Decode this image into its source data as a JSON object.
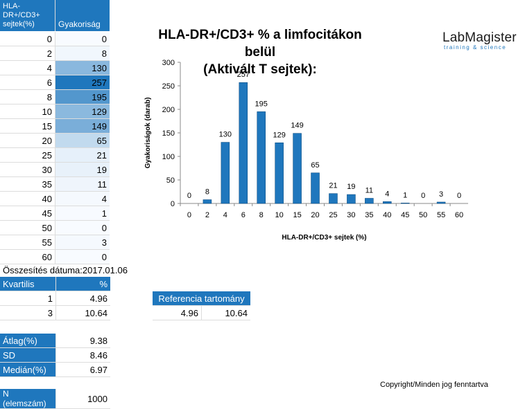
{
  "table": {
    "header_col1": "HLA-DR+/CD3+ sejtek(%)",
    "header_col2": "Gyakoriság",
    "rows": [
      {
        "x": "0",
        "f": "0"
      },
      {
        "x": "2",
        "f": "8"
      },
      {
        "x": "4",
        "f": "130"
      },
      {
        "x": "6",
        "f": "257"
      },
      {
        "x": "8",
        "f": "195"
      },
      {
        "x": "10",
        "f": "129"
      },
      {
        "x": "15",
        "f": "149"
      },
      {
        "x": "20",
        "f": "65"
      },
      {
        "x": "25",
        "f": "21"
      },
      {
        "x": "30",
        "f": "19"
      },
      {
        "x": "35",
        "f": "11"
      },
      {
        "x": "40",
        "f": "4"
      },
      {
        "x": "45",
        "f": "1"
      },
      {
        "x": "50",
        "f": "0"
      },
      {
        "x": "55",
        "f": "3"
      },
      {
        "x": "60",
        "f": "0"
      }
    ]
  },
  "title_line1": "HLA-DR+/CD3+ % a limfocitákon  belül",
  "title_line2": "(Aktivált T sejtek):",
  "logo": {
    "main": "LabMagister",
    "sub": "training & science"
  },
  "colors": {
    "accent": "#1f77bd",
    "bar": "#1f77bd",
    "bar_stroke": "#0d4f85"
  },
  "chart_data": {
    "type": "bar",
    "categories": [
      "0",
      "2",
      "4",
      "6",
      "8",
      "10",
      "15",
      "20",
      "25",
      "30",
      "35",
      "40",
      "45",
      "50",
      "55",
      "60"
    ],
    "values": [
      0,
      8,
      130,
      257,
      195,
      129,
      149,
      65,
      21,
      19,
      11,
      4,
      1,
      0,
      3,
      0
    ],
    "xlabel": "HLA-DR+/CD3+ sejtek (%)",
    "ylabel": "Gyakoriságok (darab)",
    "ylim": [
      0,
      300
    ],
    "yticks": [
      0,
      50,
      100,
      150,
      200,
      250,
      300
    ],
    "data_labels": true
  },
  "summary": {
    "date_label": "Összesítés dátuma:",
    "date_value": "2017.01.06",
    "quartile_header": "Kvartilis",
    "percent_header": "%",
    "quartiles": [
      {
        "k": "1",
        "v": "4.96"
      },
      {
        "k": "3",
        "v": "10.64"
      }
    ],
    "reference_header": "Referencia tartomány",
    "reference_low": "4.96",
    "reference_high": "10.64",
    "mean_label": "Átlag(%)",
    "mean_value": "9.38",
    "sd_label": "SD",
    "sd_value": "8.46",
    "median_label": "Medián(%)",
    "median_value": "6.97",
    "n_label": "N (elemszám)",
    "n_value": "1000",
    "copyright": "Copyright/Minden jog fenntartva"
  }
}
